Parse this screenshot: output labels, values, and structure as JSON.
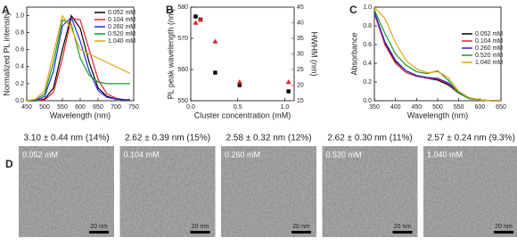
{
  "chart_data": [
    {
      "type": "line",
      "panel": "A",
      "x_label": "Wavelength (nm)",
      "y_label": "Normalized PL intensity",
      "x": [
        450,
        475,
        500,
        525,
        550,
        575,
        600,
        625,
        650,
        675,
        700,
        725,
        740
      ],
      "xlim": [
        450,
        750
      ],
      "xticks": [
        450,
        500,
        550,
        600,
        650,
        700,
        750
      ],
      "ylim": [
        0,
        1.1
      ],
      "yticks": [
        {
          "value": 0,
          "label": "0.0"
        },
        0.2,
        0.4,
        0.6,
        0.8,
        {
          "value": 1,
          "label": "1.0"
        }
      ],
      "legend": "upper right",
      "series": [
        {
          "name": "0.052 mM",
          "color": "#000000",
          "values": [
            0,
            0,
            0.02,
            0.15,
            0.6,
            1.0,
            0.85,
            0.45,
            0.15,
            0.05,
            0.02,
            0.01,
            0.01
          ]
        },
        {
          "name": "0.104 mM",
          "color": "#e8202a",
          "values": [
            0,
            0,
            0.01,
            0.1,
            0.5,
            0.97,
            0.95,
            0.6,
            0.25,
            0.08,
            0.03,
            0.01,
            0.01
          ]
        },
        {
          "name": "0.260 mM",
          "color": "#1f2bd6",
          "values": [
            0,
            0,
            0.05,
            0.35,
            0.88,
            0.98,
            0.7,
            0.35,
            0.12,
            0.04,
            0.02,
            0.01,
            0.01
          ]
        },
        {
          "name": "0.520 mM",
          "color": "#1a9a2a",
          "values": [
            0,
            0.01,
            0.08,
            0.45,
            0.95,
            0.9,
            0.5,
            0.3,
            0.22,
            0.2,
            0.2,
            0.2,
            0.2
          ]
        },
        {
          "name": "1.040 mM",
          "color": "#e8a317",
          "values": [
            0,
            0.02,
            0.12,
            0.55,
            1.0,
            0.85,
            0.6,
            0.55,
            0.5,
            0.45,
            0.4,
            0.35,
            0.32
          ]
        }
      ]
    },
    {
      "type": "scatter",
      "panel": "B",
      "x_label": "Cluster concentration (mM)",
      "y_label": "PL peak wavelength (nm)",
      "y2_label": "HWHM (nm)",
      "y2_color": "#e8202a",
      "x": [
        0.052,
        0.104,
        0.26,
        0.52,
        1.04
      ],
      "xlim": [
        0,
        1.1
      ],
      "xticks": [
        {
          "value": 0,
          "label": "0.0"
        },
        0.5,
        {
          "value": 1,
          "label": "1.0"
        }
      ],
      "ylim": [
        550,
        580
      ],
      "yticks": [
        550,
        560,
        570,
        580
      ],
      "y2lim": [
        15,
        45
      ],
      "y2ticks": [
        15,
        20,
        25,
        30,
        35,
        40,
        45
      ],
      "series": [
        {
          "color": "#000000",
          "marker": "square",
          "values": [
            577,
            576,
            559,
            555,
            553
          ]
        },
        {
          "color": "#e8202a",
          "marker": "triangle",
          "axis": "y2",
          "values": [
            40,
            41,
            34,
            21,
            21
          ]
        }
      ]
    },
    {
      "type": "line",
      "panel": "C",
      "x_label": "Wavelength (nm)",
      "y_label": "Absorbance",
      "x": [
        350,
        375,
        400,
        425,
        450,
        475,
        500,
        525,
        550,
        575,
        600,
        625,
        650
      ],
      "xlim": [
        350,
        650
      ],
      "xticks": [
        350,
        400,
        450,
        500,
        550,
        600,
        650
      ],
      "ylim": [
        0,
        1.0
      ],
      "yticks": [
        {
          "value": 0,
          "label": "0.0"
        },
        0.2,
        0.4,
        0.6,
        0.8,
        {
          "value": 1,
          "label": "1.0"
        }
      ],
      "legend": "right",
      "series": [
        {
          "name": "0.052 mM",
          "color": "#000000",
          "values": [
            0.95,
            0.62,
            0.42,
            0.32,
            0.27,
            0.24,
            0.22,
            0.17,
            0.08,
            0.03,
            0.01,
            0,
            0
          ]
        },
        {
          "name": "0.104 mM",
          "color": "#e8202a",
          "values": [
            0.93,
            0.6,
            0.4,
            0.3,
            0.26,
            0.24,
            0.23,
            0.18,
            0.08,
            0.03,
            0.01,
            0,
            0
          ]
        },
        {
          "name": "0.260 mM",
          "color": "#1f2bd6",
          "values": [
            0.95,
            0.63,
            0.43,
            0.32,
            0.27,
            0.25,
            0.24,
            0.19,
            0.09,
            0.03,
            0.01,
            0,
            0
          ]
        },
        {
          "name": "0.520 mM",
          "color": "#1a9a2a",
          "values": [
            0.97,
            0.72,
            0.5,
            0.38,
            0.31,
            0.29,
            0.32,
            0.22,
            0.08,
            0.02,
            0.01,
            0,
            0
          ]
        },
        {
          "name": "1.040 mM",
          "color": "#e8a317",
          "values": [
            1.0,
            0.88,
            0.62,
            0.43,
            0.34,
            0.3,
            0.31,
            0.25,
            0.1,
            0.03,
            0.01,
            0,
            0
          ]
        }
      ]
    }
  ],
  "tem_panel": {
    "panel": "D",
    "images": [
      {
        "caption": "3.10 ± 0.44 nm (14%)",
        "concentration": "0.052 mM",
        "scale_bar": "20 nm"
      },
      {
        "caption": "2.62 ± 0.39 nm (15%)",
        "concentration": "0.104 mM",
        "scale_bar": "20 nm"
      },
      {
        "caption": "2.58 ± 0.32 nm (12%)",
        "concentration": "0.260 mM",
        "scale_bar": "20 nm"
      },
      {
        "caption": "2.62 ± 0.30 nm (11%)",
        "concentration": "0.520 mM",
        "scale_bar": "20 nm"
      },
      {
        "caption": "2.57 ± 0.24 nm (9.3%)",
        "concentration": "1.040 mM",
        "scale_bar": "20 nm"
      }
    ]
  }
}
